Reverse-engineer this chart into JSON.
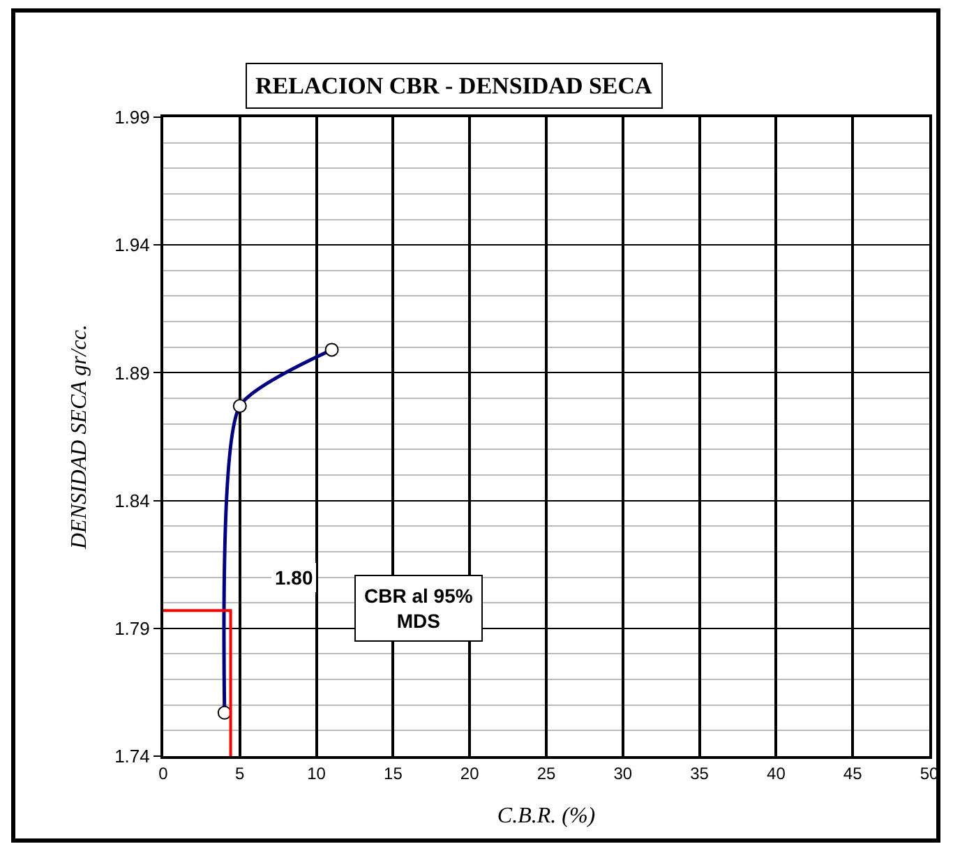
{
  "chart_data": {
    "type": "line",
    "title": "RELACION CBR - DENSIDAD SECA",
    "xlabel": "C.B.R. (%)",
    "ylabel": "DENSIDAD SECA gr/cc.",
    "series": [
      {
        "color": "#000080",
        "x": [
          4.0,
          5.0,
          11.0
        ],
        "values": [
          1.757,
          1.877,
          1.899
        ],
        "marker": "circle"
      },
      {
        "color": "#ff0000",
        "x": [
          0,
          4.4,
          4.4
        ],
        "values": [
          1.797,
          1.797,
          1.74
        ],
        "marker": "none"
      }
    ],
    "annotations": [
      "1.80",
      "CBR al 95%\nMDS"
    ],
    "xlim": [
      0,
      50
    ],
    "xticks": [
      0,
      5,
      10,
      15,
      20,
      25,
      30,
      35,
      40,
      45,
      50
    ],
    "ylim": [
      1.74,
      1.99
    ],
    "yticks": [
      1.74,
      1.79,
      1.84,
      1.89,
      1.94,
      1.99
    ],
    "grid": true
  }
}
